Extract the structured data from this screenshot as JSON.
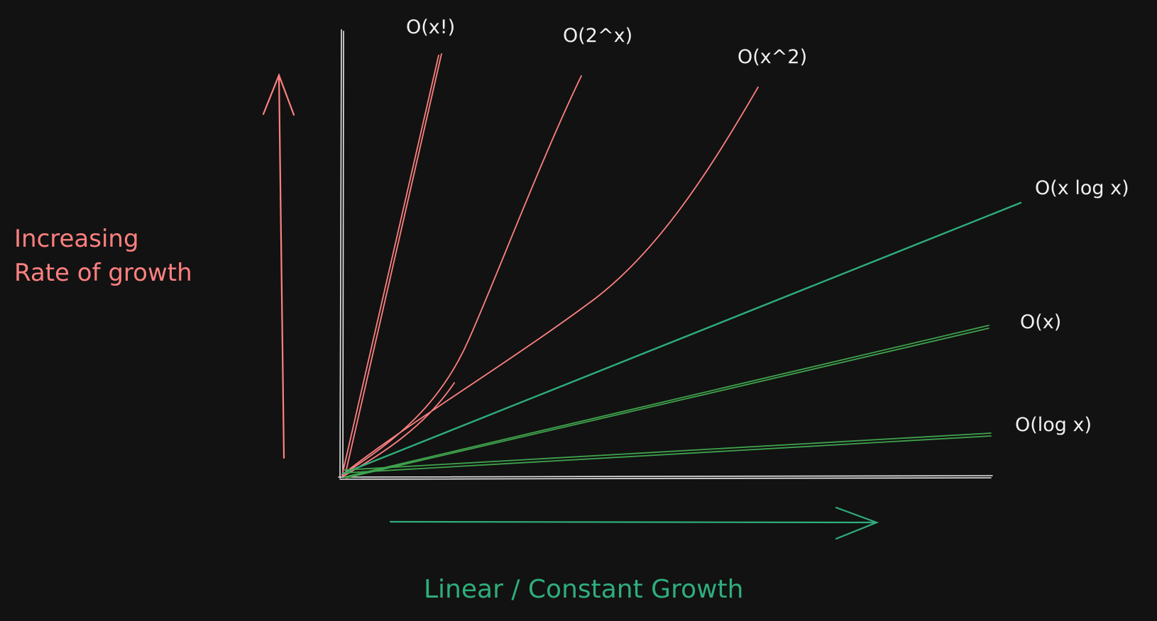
{
  "colors": {
    "background": "#121212",
    "axis": "#e8e8e8",
    "fast_growth": "#ff8080",
    "slow_growth": "#2fae7c",
    "slow_growth_alt": "#3fa34d",
    "label": "#f0f0f0"
  },
  "vertical_caption": {
    "line1": "Increasing",
    "line2": "Rate of growth"
  },
  "horizontal_caption": "Linear / Constant Growth",
  "curves": {
    "factorial": "O(x!)",
    "exponential": "O(2^x)",
    "quadratic": "O(x^2)",
    "linearithmic": "O(x log x)",
    "linear": "O(x)",
    "logarithmic": "O(log x)"
  }
}
